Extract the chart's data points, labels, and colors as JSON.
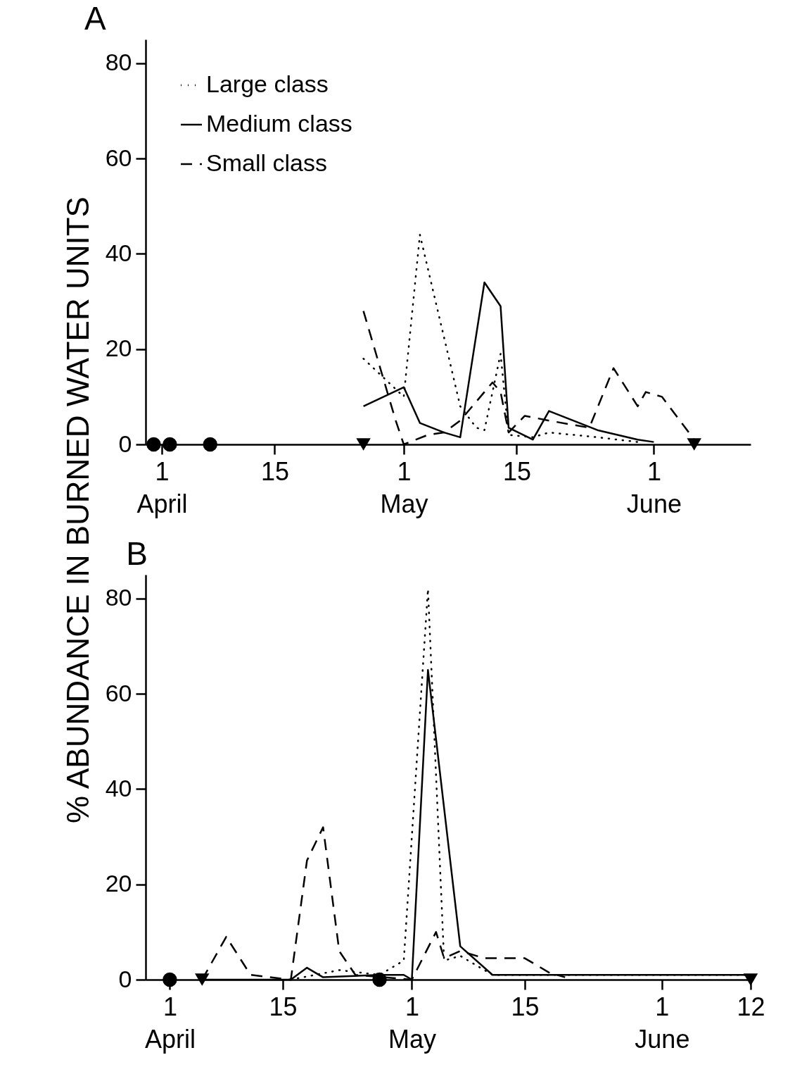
{
  "chart_data": [
    {
      "type": "line",
      "title": "A",
      "ylabel": "% ABUNDANCE IN BURNED WATER UNITS",
      "legend": "top left",
      "xlim": [
        "--03-30",
        "--06-13"
      ],
      "ylim": [
        0,
        85
      ],
      "yticks": [
        0,
        20,
        40,
        60,
        80
      ],
      "xticks": [
        {
          "value": "--04-01",
          "label": "1\nApril"
        },
        {
          "value": "--04-15",
          "label": "15"
        },
        {
          "value": "--05-01",
          "label": "1\nMay"
        },
        {
          "value": "--05-15",
          "label": "15"
        },
        {
          "value": "--06-01",
          "label": "1\nJune"
        }
      ],
      "series": [
        {
          "name": "Large class",
          "color": "#000000",
          "line_style": "dotted",
          "x": [
            "--04-26",
            "--05-01",
            "--05-03",
            "--05-08",
            "--05-10",
            "--05-11",
            "--05-13",
            "--05-14",
            "--05-17",
            "--05-19",
            "--05-25",
            "--05-30"
          ],
          "values": [
            18,
            10,
            44,
            8,
            3.5,
            3,
            19,
            2,
            1.5,
            2.5,
            1.5,
            0.5
          ]
        },
        {
          "name": "Medium class",
          "color": "#000000",
          "line_style": "solid",
          "x": [
            "--04-26",
            "--05-01",
            "--05-03",
            "--05-06",
            "--05-08",
            "--05-11",
            "--05-13",
            "--05-14",
            "--05-17",
            "--05-19",
            "--05-25",
            "--05-30",
            "--06-01"
          ],
          "values": [
            8,
            12,
            4.5,
            2.5,
            1.5,
            34,
            29,
            3.5,
            1,
            7,
            3,
            1,
            0.5
          ]
        },
        {
          "name": "Small class",
          "color": "#000000",
          "line_style": "dashed",
          "x": [
            "--04-26",
            "--04-30",
            "--05-01",
            "--05-04",
            "--05-06",
            "--05-08",
            "--05-12",
            "--05-13",
            "--05-14",
            "--05-16",
            "--05-19",
            "--05-24",
            "--05-27",
            "--05-30",
            "--05-31",
            "--06-02",
            "--06-06"
          ],
          "values": [
            28,
            5,
            0,
            2,
            2.5,
            5,
            13,
            11,
            2.5,
            6,
            5,
            3.5,
            16,
            8,
            11,
            10,
            1
          ]
        },
        {
          "type": "scatter",
          "marker": "circle",
          "color": "#000000",
          "x": [
            "--03-31",
            "--04-02",
            "--04-07"
          ],
          "values": [
            0,
            0,
            0
          ]
        },
        {
          "type": "scatter",
          "marker": "triangle",
          "color": "#000000",
          "x": [
            "--04-26",
            "--06-06"
          ],
          "values": [
            0,
            0
          ]
        }
      ]
    },
    {
      "type": "line",
      "title": "B",
      "xlim": [
        "--03-29",
        "--06-12"
      ],
      "ylim": [
        0,
        85
      ],
      "yticks": [
        0,
        20,
        40,
        60,
        80
      ],
      "xticks": [
        {
          "value": "--04-01",
          "label": "1\nApril"
        },
        {
          "value": "--04-15",
          "label": "15"
        },
        {
          "value": "--05-01",
          "label": "1\nMay"
        },
        {
          "value": "--05-15",
          "label": "15"
        },
        {
          "value": "--06-01",
          "label": "1\nJune"
        },
        {
          "value": "--06-12",
          "label": "12"
        }
      ],
      "series": [
        {
          "color": "#000000",
          "line_style": "dotted",
          "x": [
            "--04-16",
            "--04-22",
            "--04-27",
            "--04-30",
            "--05-03",
            "--05-05",
            "--05-07",
            "--05-11",
            "--06-12"
          ],
          "values": [
            0,
            2,
            1,
            4,
            82,
            4,
            5,
            1,
            1
          ]
        },
        {
          "color": "#000000",
          "line_style": "solid",
          "x": [
            "--04-05",
            "--04-16",
            "--04-18",
            "--04-20",
            "--04-27",
            "--04-30",
            "--05-01",
            "--05-03",
            "--05-07",
            "--05-11",
            "--05-20",
            "--06-12"
          ],
          "values": [
            0,
            0,
            2.5,
            0.5,
            1,
            1,
            0,
            65,
            7,
            1,
            1,
            1
          ]
        },
        {
          "color": "#000000",
          "line_style": "dashed",
          "x": [
            "--04-05",
            "--04-08",
            "--04-11",
            "--04-16",
            "--04-18",
            "--04-20",
            "--04-22",
            "--04-24",
            "--05-01",
            "--05-04",
            "--05-05",
            "--05-07",
            "--05-10",
            "--05-15",
            "--05-18",
            "--05-20"
          ],
          "values": [
            0,
            9,
            1,
            0,
            25,
            32,
            6,
            1,
            0,
            10,
            4.5,
            6,
            4.5,
            4.5,
            1.5,
            0.5
          ]
        },
        {
          "type": "scatter",
          "marker": "circle",
          "color": "#000000",
          "x": [
            "--04-01",
            "--04-27"
          ],
          "values": [
            0,
            0
          ]
        },
        {
          "type": "scatter",
          "marker": "triangle",
          "color": "#000000",
          "x": [
            "--04-05",
            "--06-12"
          ],
          "values": [
            0,
            0
          ]
        }
      ]
    }
  ]
}
